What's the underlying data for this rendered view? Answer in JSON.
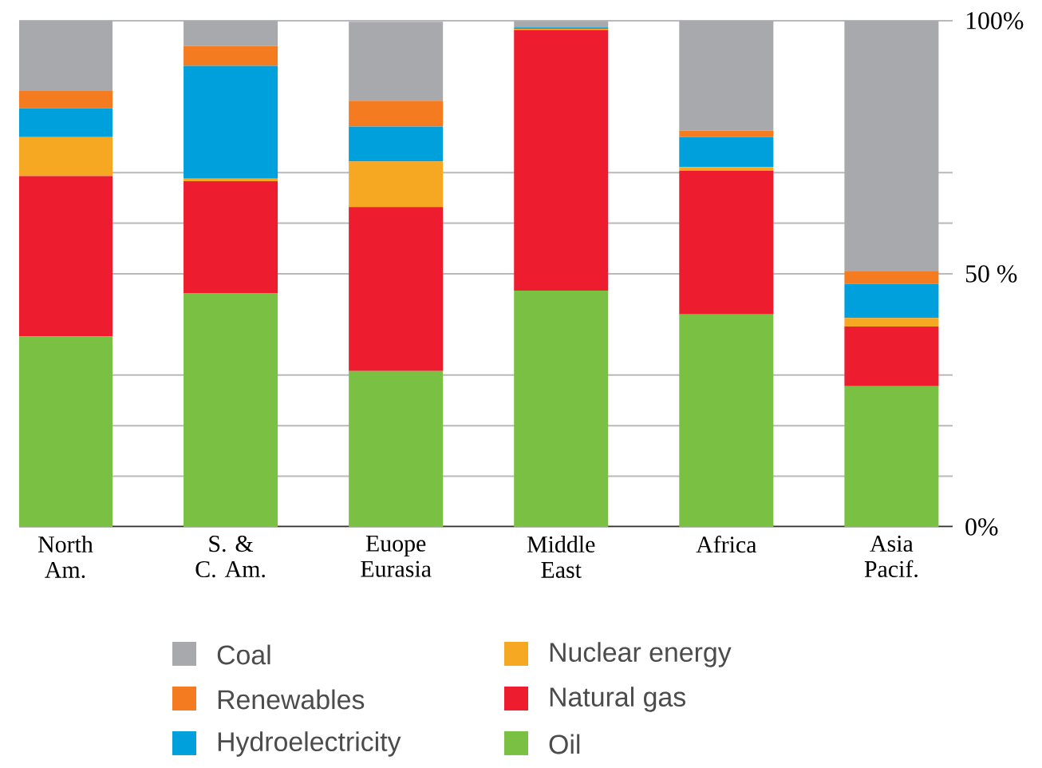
{
  "chart_data": {
    "type": "bar",
    "stacked": true,
    "categories": [
      "North Am.",
      "S. & C. Am.",
      "Euope Eurasia",
      "Middle East",
      "Africa",
      "Asia Pacif."
    ],
    "series": [
      {
        "name": "Oil",
        "color": "#7ac143",
        "values": [
          37.6,
          46.2,
          30.8,
          46.7,
          42.0,
          27.8
        ]
      },
      {
        "name": "Natural gas",
        "color": "#ed1c2e",
        "values": [
          31.7,
          22.1,
          32.4,
          51.5,
          28.4,
          11.8
        ]
      },
      {
        "name": "Nuclear energy",
        "color": "#f7a823",
        "values": [
          7.7,
          0.5,
          9.0,
          0.2,
          0.7,
          1.7
        ]
      },
      {
        "name": "Hydroelectricity",
        "color": "#00a0dc",
        "values": [
          5.7,
          22.3,
          6.9,
          0.3,
          5.9,
          6.7
        ]
      },
      {
        "name": "Renewables",
        "color": "#f47b20",
        "values": [
          3.4,
          3.9,
          5.1,
          null,
          1.3,
          2.6
        ]
      },
      {
        "name": "Coal",
        "color": "#a7a9ac",
        "values": [
          13.9,
          5.0,
          15.6,
          1.2,
          21.7,
          49.4
        ]
      }
    ],
    "ylim": [
      0,
      100
    ],
    "yticks": [
      {
        "value": 0,
        "label": "0%"
      },
      {
        "value": 10,
        "label": null
      },
      {
        "value": 20,
        "label": null
      },
      {
        "value": 30,
        "label": null
      },
      {
        "value": 50,
        "label": "50 %"
      },
      {
        "value": 60,
        "label": null
      },
      {
        "value": 70,
        "label": null
      },
      {
        "value": 100,
        "label": "100%"
      }
    ],
    "grid": "y",
    "legend": "bottom"
  }
}
